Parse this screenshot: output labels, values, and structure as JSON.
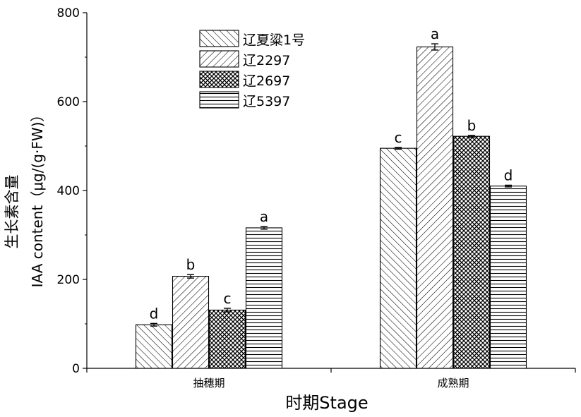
{
  "chart_data": {
    "type": "bar",
    "title": "",
    "xlabel": "时期Stage",
    "ylabel_cn": "生长素含量",
    "ylabel_en": "IAA content（μg/(g·FW)）",
    "categories": [
      "抽穗期",
      "成熟期"
    ],
    "ylim": [
      0,
      800
    ],
    "yticks": [
      0,
      200,
      400,
      600,
      800
    ],
    "grid": false,
    "legend_position": "top-left",
    "series": [
      {
        "name": "辽夏粱1号",
        "pattern": "fwd",
        "values": [
          98,
          495
        ],
        "errors": [
          3,
          2
        ],
        "letters": [
          "d",
          "c"
        ]
      },
      {
        "name": "辽2297",
        "pattern": "back",
        "values": [
          207,
          723
        ],
        "errors": [
          4,
          7
        ],
        "letters": [
          "b",
          "a"
        ]
      },
      {
        "name": "辽2697",
        "pattern": "cross",
        "values": [
          131,
          522
        ],
        "errors": [
          4,
          2
        ],
        "letters": [
          "c",
          "b"
        ]
      },
      {
        "name": "辽5397",
        "pattern": "horiz",
        "values": [
          316,
          410
        ],
        "errors": [
          3,
          2
        ],
        "letters": [
          "a",
          "d"
        ]
      }
    ]
  }
}
